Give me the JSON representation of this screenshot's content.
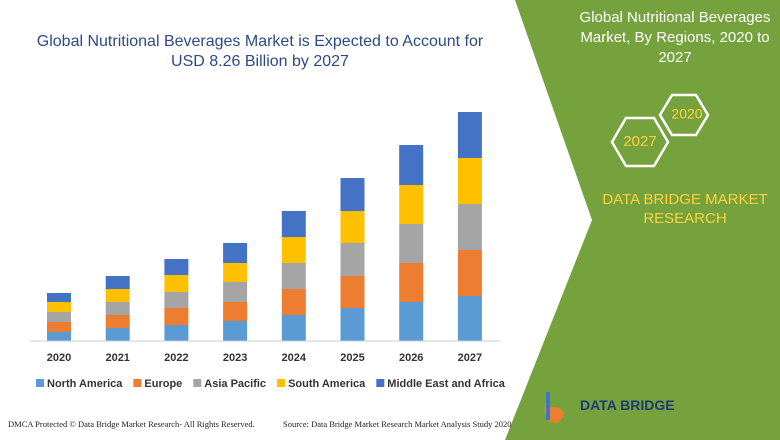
{
  "chart_data": {
    "type": "bar",
    "stacked": true,
    "title": "Global Nutritional Beverages Market is Expected to Account for USD 8.26 Billion by 2027",
    "categories": [
      "2020",
      "2021",
      "2022",
      "2023",
      "2024",
      "2025",
      "2026",
      "2027"
    ],
    "series": [
      {
        "name": "North America",
        "color": "#5b9bd5",
        "values": [
          9,
          13,
          16,
          20,
          26,
          33,
          39,
          45
        ]
      },
      {
        "name": "Europe",
        "color": "#ed7d31",
        "values": [
          10,
          13,
          17,
          19,
          26,
          32,
          39,
          46
        ]
      },
      {
        "name": "Asia Pacific",
        "color": "#a5a5a5",
        "values": [
          10,
          13,
          16,
          20,
          26,
          33,
          39,
          46
        ]
      },
      {
        "name": "South America",
        "color": "#ffc000",
        "values": [
          10,
          13,
          17,
          19,
          26,
          32,
          39,
          46
        ]
      },
      {
        "name": "Middle East and Africa",
        "color": "#4472c4",
        "values": [
          9,
          13,
          16,
          20,
          26,
          33,
          40,
          46
        ]
      }
    ]
  },
  "panel": {
    "title": "Global Nutritional Beverages Market, By Regions, 2020 to 2027",
    "hex_small": "2020",
    "hex_large": "2027",
    "brand": "DATA BRIDGE MARKET RESEARCH"
  },
  "logo": "DATA BRIDGE",
  "footer": {
    "left": "DMCA Protected © Data Bridge Market Research- All Rights Reserved.",
    "right": "Source: Data Bridge Market Research Market Analysis Study 2020"
  }
}
